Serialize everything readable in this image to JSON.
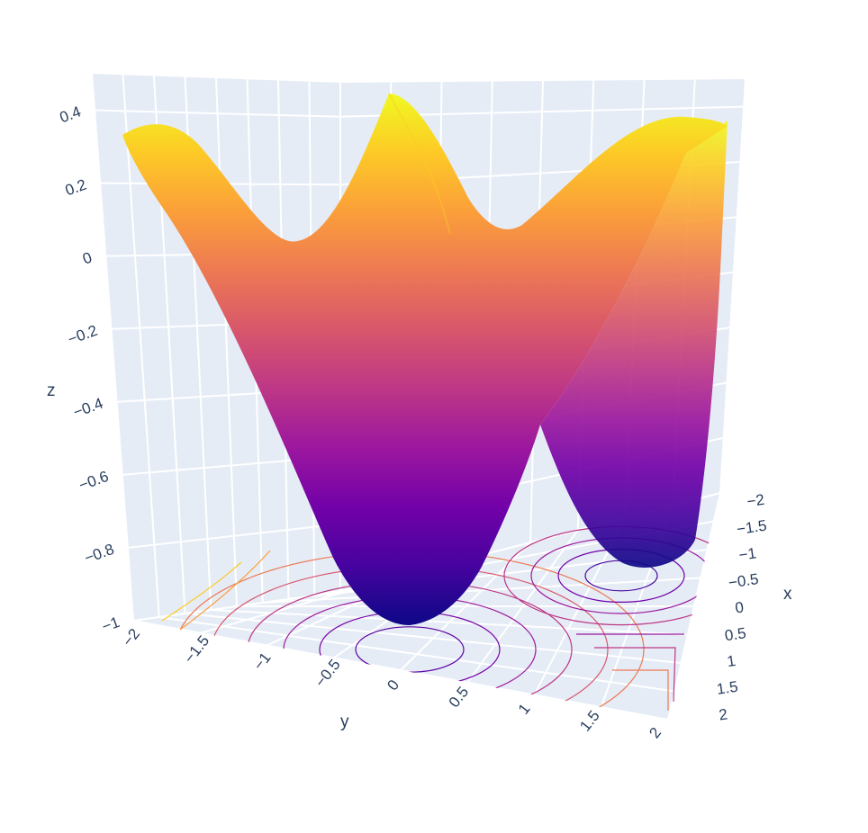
{
  "chart_data": {
    "type": "surface",
    "title": "",
    "colors": {
      "scale": [
        "#0d0887",
        "#46039f",
        "#7201a8",
        "#9c179e",
        "#bd3786",
        "#d8576b",
        "#ed7953",
        "#fb9f3a",
        "#fdca26",
        "#f0f921"
      ],
      "scene_bg": "#e5ecf6",
      "grid": "#ffffff",
      "text": "#2a3f5f"
    },
    "function_samples": {
      "x": [
        -2,
        -1.5,
        -1,
        -0.5,
        0,
        0.5,
        1,
        1.5,
        2
      ],
      "y": [
        -2,
        -1.5,
        -1,
        -0.5,
        0,
        0.5,
        1,
        1.5,
        2
      ],
      "z_min": -0.95,
      "z_max": 0.48
    },
    "axes": {
      "x": {
        "title": "x",
        "range": [
          -2,
          2
        ],
        "ticks": [
          "−2",
          "−1.5",
          "−1",
          "−0.5",
          "0",
          "0.5",
          "1",
          "1.5",
          "2"
        ]
      },
      "y": {
        "title": "y",
        "range": [
          -2,
          2
        ],
        "ticks": [
          "−2",
          "−1.5",
          "−1",
          "−0.5",
          "0",
          "0.5",
          "1",
          "1.5",
          "2"
        ]
      },
      "z": {
        "title": "z",
        "range": [
          -1,
          0.5
        ],
        "ticks": [
          "−1",
          "−0.8",
          "−0.6",
          "−0.4",
          "−0.2",
          "0",
          "0.2",
          "0.4"
        ]
      }
    },
    "contours_on_floor": true,
    "grid": true,
    "legend": "none"
  }
}
